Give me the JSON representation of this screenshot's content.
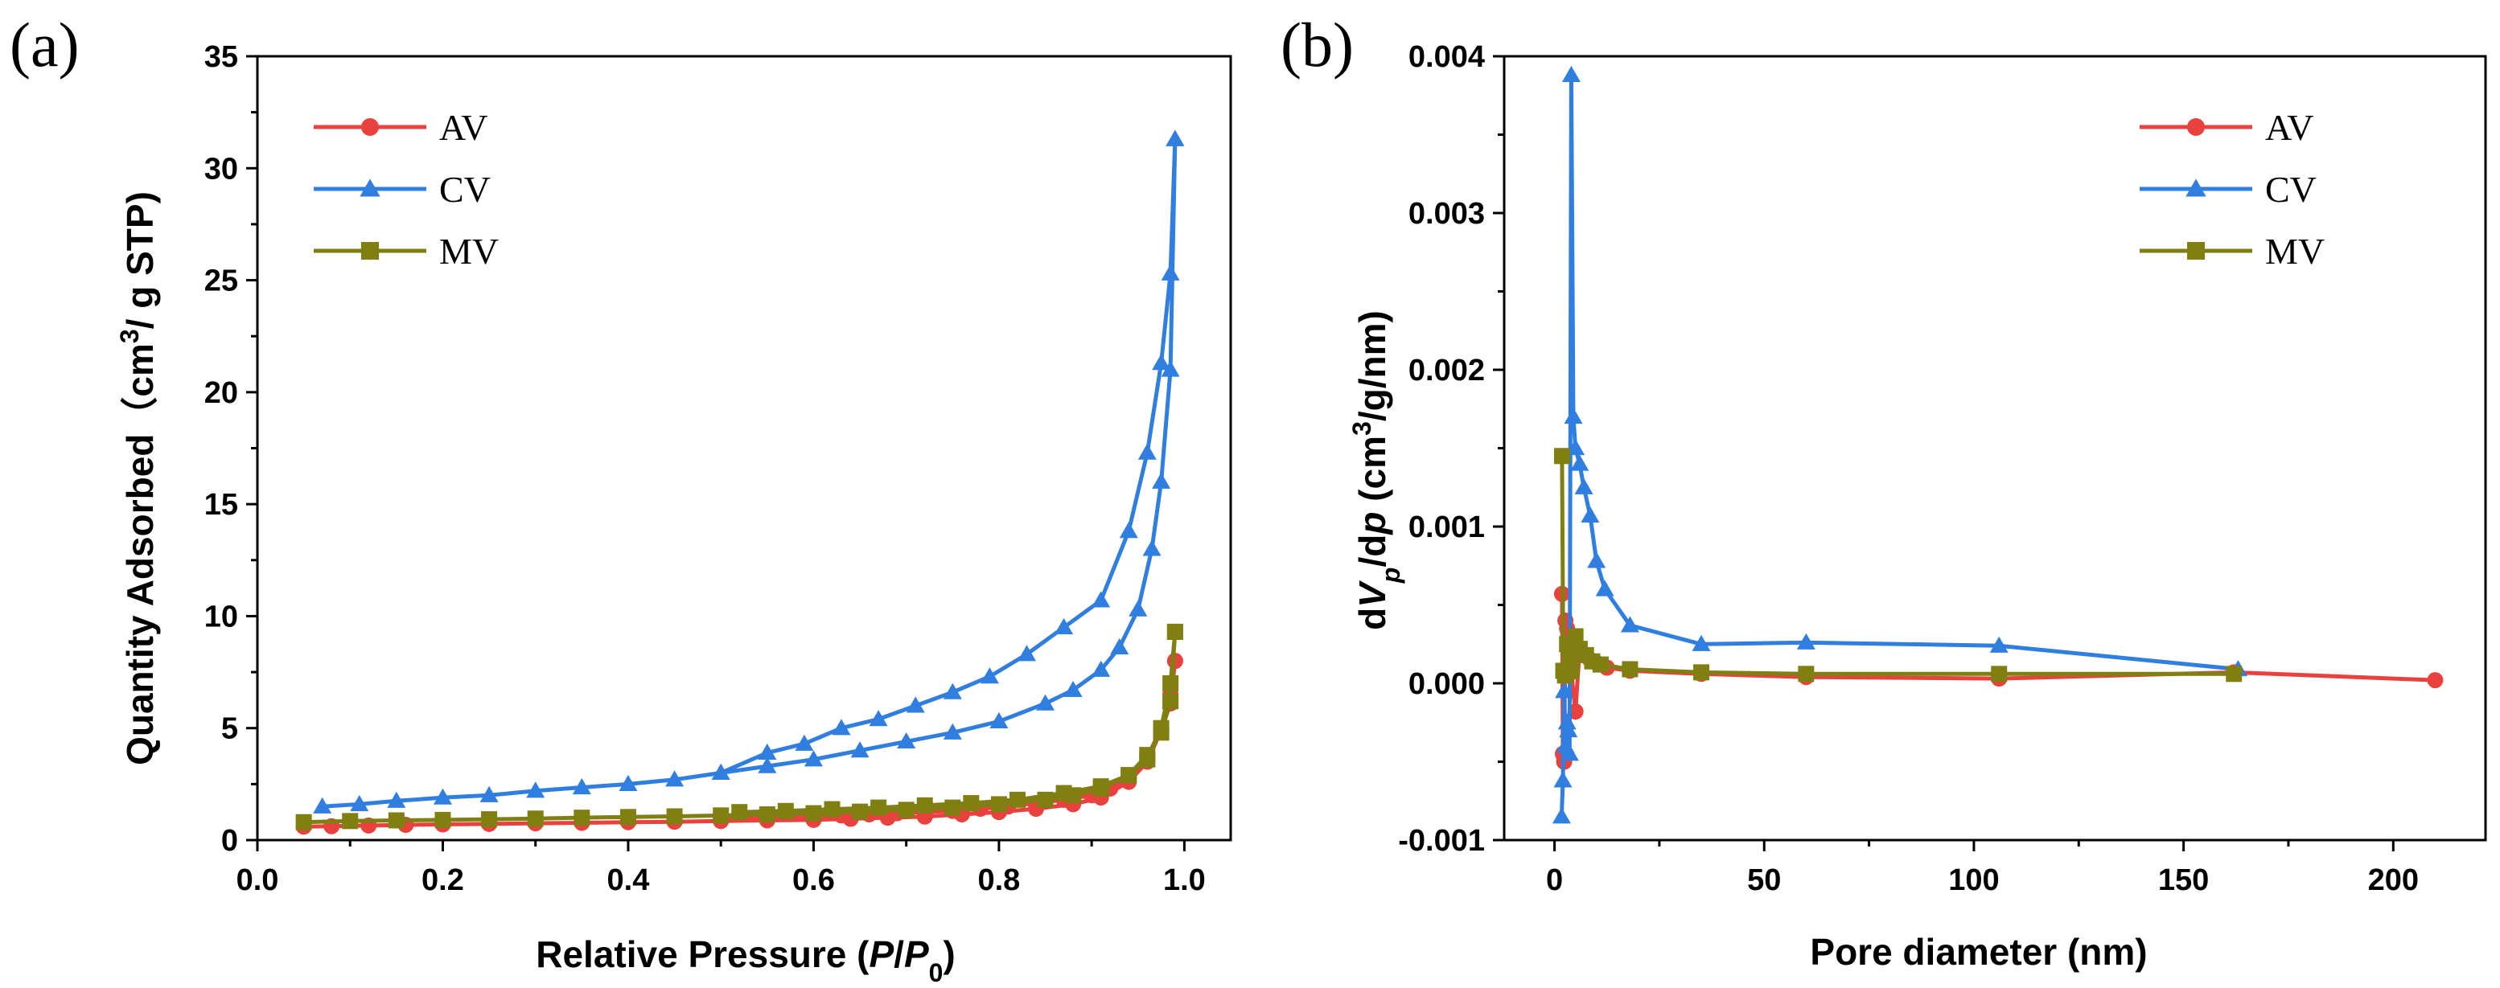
{
  "colors": {
    "AV": "#e8413e",
    "CV": "#2f7ee0",
    "MV": "#7f7f12"
  },
  "chart_data": [
    {
      "type": "line",
      "panel_label": "(a)",
      "xlabel_parts": [
        "Relative Pressure (",
        "P",
        "/",
        "P",
        "0",
        ")"
      ],
      "ylabel_parts": [
        "Quantity Adsorbed（cm",
        "3",
        "/ g STP)"
      ],
      "xlim": [
        0,
        1.05
      ],
      "ylim": [
        0,
        35
      ],
      "xticks": [
        0.0,
        0.2,
        0.4,
        0.6,
        0.8,
        1.0
      ],
      "xtick_labels": [
        "0.0",
        "0.2",
        "0.4",
        "0.6",
        "0.8",
        "1.0"
      ],
      "yticks": [
        0,
        5,
        10,
        15,
        20,
        25,
        30,
        35
      ],
      "ytick_labels": [
        "0",
        "5",
        "10",
        "15",
        "20",
        "25",
        "30",
        "35"
      ],
      "legend": {
        "position": "top-left",
        "entries": [
          "AV",
          "CV",
          "MV"
        ]
      },
      "series": [
        {
          "name": "AV",
          "marker": "circle",
          "x": [
            0.05,
            0.08,
            0.12,
            0.16,
            0.2,
            0.25,
            0.3,
            0.35,
            0.4,
            0.45,
            0.5,
            0.55,
            0.6,
            0.64,
            0.68,
            0.72,
            0.76,
            0.8,
            0.84,
            0.88,
            0.91,
            0.94,
            0.96,
            0.975,
            0.985,
            0.99,
            0.99,
            0.985,
            0.975,
            0.96,
            0.94,
            0.92,
            0.9,
            0.87,
            0.84,
            0.81,
            0.78,
            0.75,
            0.72,
            0.69,
            0.66,
            0.63,
            0.6,
            0.55,
            0.5
          ],
          "y": [
            0.6,
            0.62,
            0.65,
            0.68,
            0.7,
            0.72,
            0.75,
            0.77,
            0.8,
            0.82,
            0.85,
            0.88,
            0.9,
            0.95,
            1.0,
            1.05,
            1.15,
            1.25,
            1.4,
            1.6,
            1.9,
            2.6,
            3.5,
            4.9,
            6.1,
            8.0,
            8.0,
            6.5,
            5.0,
            3.7,
            2.8,
            2.3,
            2.0,
            1.8,
            1.65,
            1.5,
            1.4,
            1.3,
            1.25,
            1.2,
            1.15,
            1.1,
            1.05,
            1.0,
            0.95
          ]
        },
        {
          "name": "CV",
          "marker": "triangle",
          "x": [
            0.07,
            0.11,
            0.15,
            0.2,
            0.25,
            0.3,
            0.35,
            0.4,
            0.45,
            0.5,
            0.55,
            0.6,
            0.65,
            0.7,
            0.75,
            0.8,
            0.85,
            0.88,
            0.91,
            0.93,
            0.95,
            0.965,
            0.975,
            0.985,
            0.99,
            0.99,
            0.985,
            0.975,
            0.96,
            0.94,
            0.91,
            0.87,
            0.83,
            0.79,
            0.75,
            0.71,
            0.67,
            0.63,
            0.59,
            0.55,
            0.5
          ],
          "y": [
            1.5,
            1.6,
            1.75,
            1.9,
            2.0,
            2.2,
            2.35,
            2.5,
            2.7,
            3.0,
            3.3,
            3.6,
            4.0,
            4.4,
            4.8,
            5.3,
            6.1,
            6.7,
            7.6,
            8.6,
            10.3,
            13.0,
            16.0,
            21.0,
            31.3,
            31.3,
            25.3,
            21.3,
            17.3,
            13.8,
            10.7,
            9.5,
            8.3,
            7.3,
            6.6,
            6.0,
            5.4,
            5.0,
            4.3,
            3.9,
            3.0
          ]
        },
        {
          "name": "MV",
          "marker": "square",
          "x": [
            0.05,
            0.1,
            0.15,
            0.2,
            0.25,
            0.3,
            0.35,
            0.4,
            0.45,
            0.5,
            0.55,
            0.6,
            0.65,
            0.7,
            0.75,
            0.8,
            0.85,
            0.88,
            0.91,
            0.94,
            0.96,
            0.975,
            0.985,
            0.99,
            0.99,
            0.985,
            0.975,
            0.96,
            0.94,
            0.91,
            0.87,
            0.82,
            0.77,
            0.72,
            0.67,
            0.62,
            0.57,
            0.52
          ],
          "y": [
            0.8,
            0.85,
            0.88,
            0.9,
            0.93,
            0.96,
            1.0,
            1.03,
            1.06,
            1.1,
            1.15,
            1.2,
            1.27,
            1.35,
            1.45,
            1.6,
            1.8,
            2.0,
            2.3,
            2.9,
            3.8,
            4.8,
            6.2,
            9.3,
            9.3,
            7.0,
            5.0,
            3.6,
            2.9,
            2.4,
            2.1,
            1.8,
            1.65,
            1.55,
            1.45,
            1.38,
            1.3,
            1.25
          ]
        }
      ]
    },
    {
      "type": "line",
      "panel_label": "(b)",
      "xlabel_parts": [
        "Pore diameter (nm)"
      ],
      "ylabel_parts": [
        "d",
        "V",
        "p",
        "/d",
        "d",
        "p",
        " (cm",
        "3",
        "/g/nm)"
      ],
      "xlim": [
        -12,
        222
      ],
      "ylim": [
        -0.001,
        0.004
      ],
      "xticks": [
        0,
        50,
        100,
        150,
        200
      ],
      "xtick_labels": [
        "0",
        "50",
        "100",
        "150",
        "200"
      ],
      "yticks": [
        -0.001,
        0.0,
        0.001,
        0.002,
        0.003,
        0.004
      ],
      "ytick_labels": [
        "-0.001",
        "0.000",
        "0.001",
        "0.002",
        "0.003",
        "0.004"
      ],
      "legend": {
        "position": "top-right",
        "entries": [
          "AV",
          "CV",
          "MV"
        ]
      },
      "series": [
        {
          "name": "AV",
          "marker": "circle",
          "x": [
            1.8,
            2.0,
            2.3,
            2.6,
            3.0,
            3.5,
            4.0,
            5.0,
            6.0,
            7.0,
            8.5,
            10.0,
            12.5,
            18.0,
            35.0,
            60.0,
            106.0,
            162.0,
            210.0
          ],
          "y": [
            0.00057,
            -0.00045,
            -0.0005,
            0.0004,
            0.00035,
            0.00012,
            7e-05,
            -0.00018,
            0.00022,
            0.00018,
            0.00015,
            0.00013,
            0.0001,
            8e-05,
            6e-05,
            4e-05,
            3e-05,
            7e-05,
            2e-05
          ]
        },
        {
          "name": "CV",
          "marker": "triangle",
          "x": [
            1.7,
            2.0,
            2.3,
            2.6,
            3.0,
            3.3,
            3.6,
            4.0,
            4.5,
            5.0,
            6.0,
            7.0,
            8.5,
            10.0,
            12.0,
            18.0,
            35.0,
            60.0,
            106.0,
            163.0
          ],
          "y": [
            -0.00085,
            -0.00062,
            -5e-05,
            -0.0004,
            -0.00025,
            -0.0003,
            -0.00045,
            0.00388,
            0.0017,
            0.0015,
            0.0014,
            0.00125,
            0.00107,
            0.00078,
            0.0006,
            0.00037,
            0.00025,
            0.00026,
            0.00024,
            9e-05
          ]
        },
        {
          "name": "MV",
          "marker": "square",
          "x": [
            1.8,
            2.1,
            2.5,
            3.0,
            3.5,
            4.0,
            5.0,
            6.0,
            7.5,
            9.0,
            11.0,
            18.0,
            35.0,
            60.0,
            106.0,
            162.0
          ],
          "y": [
            0.00145,
            8e-05,
            5e-05,
            0.00025,
            0.00015,
            8e-05,
            0.0003,
            0.00022,
            0.00018,
            0.00014,
            0.00012,
            9e-05,
            7e-05,
            6e-05,
            6e-05,
            6e-05
          ]
        }
      ]
    }
  ]
}
